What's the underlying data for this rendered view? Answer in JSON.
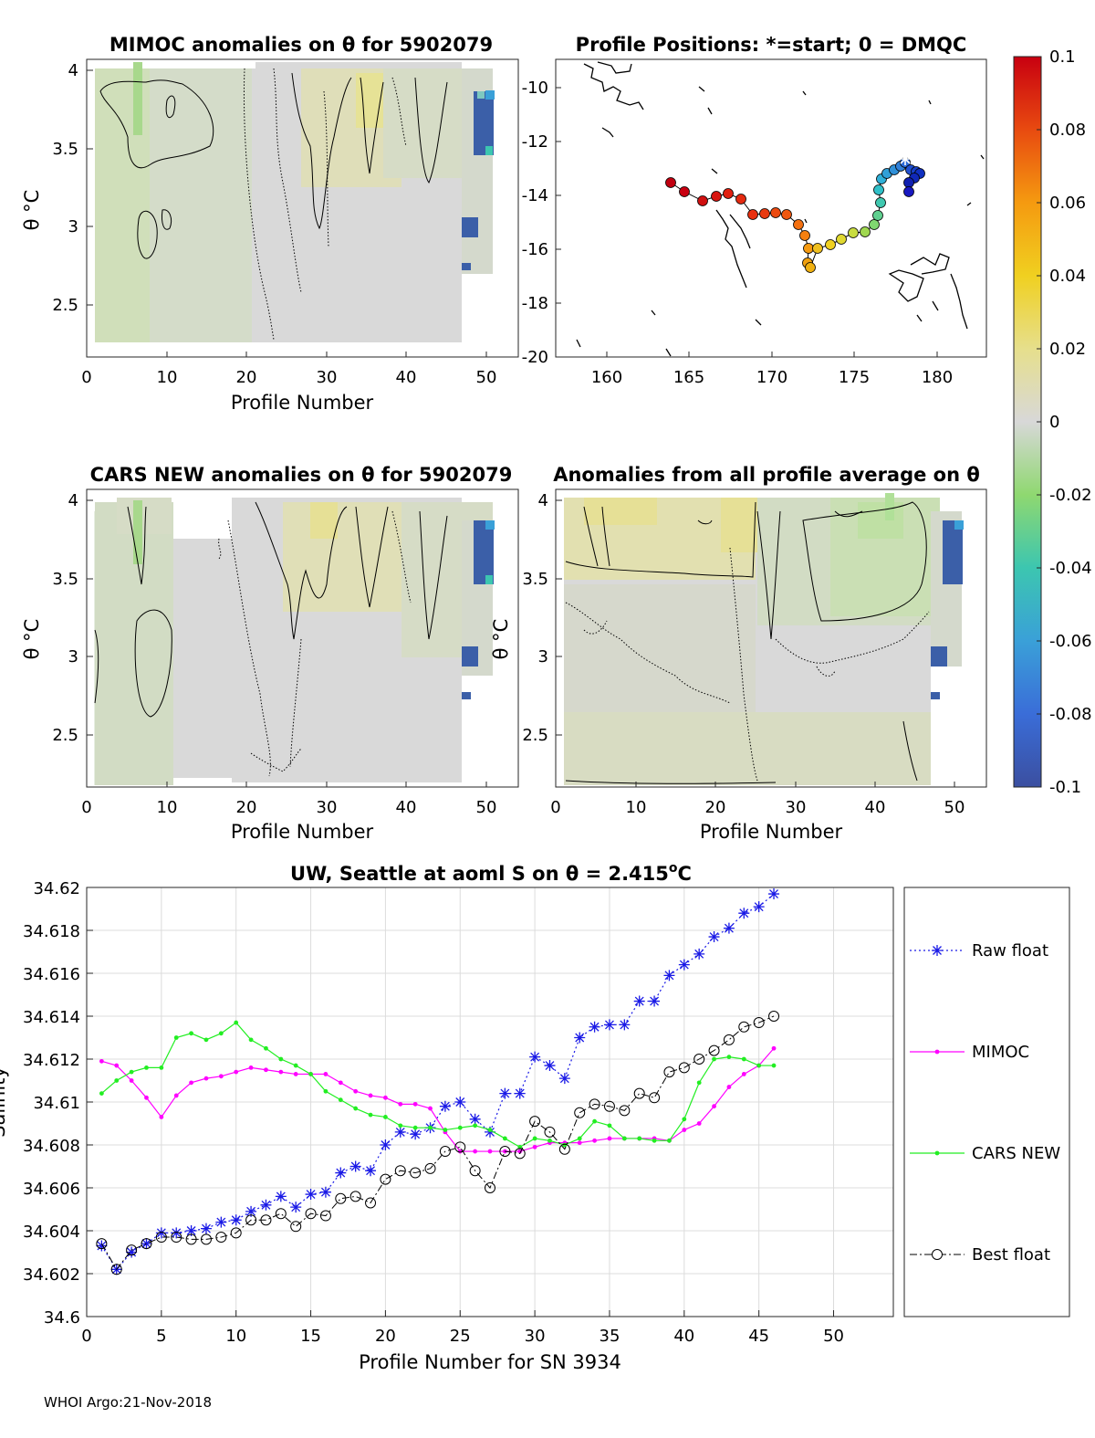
{
  "footer": "WHOI Argo:21-Nov-2018",
  "colorbar": {
    "ticks": [
      "0.1",
      "0.08",
      "0.06",
      "0.04",
      "0.02",
      "0",
      "-0.02",
      "-0.04",
      "-0.06",
      "-0.08",
      "-0.1"
    ],
    "range": [
      -0.1,
      0.1
    ],
    "colors": [
      "#3b4fa0",
      "#3a6dd8",
      "#3aa0d8",
      "#3cc6b0",
      "#8fd870",
      "#d8d8d8",
      "#e6df8c",
      "#f0d020",
      "#f59a10",
      "#e84a10",
      "#c80010"
    ]
  },
  "panels": {
    "mimoc": {
      "title": "MIMOC anomalies on θ  for 5902079",
      "ylabel": "θ °C",
      "xlabel": "Profile Number",
      "xticks": [
        "0",
        "10",
        "20",
        "30",
        "40",
        "50"
      ],
      "yticks": [
        "4",
        "3.5",
        "3",
        "2.5"
      ]
    },
    "positions": {
      "title": "Profile Positions: *=start; 0 = DMQC",
      "xticks": [
        "160",
        "165",
        "170",
        "175",
        "180"
      ],
      "yticks": [
        "-10",
        "-12",
        "-14",
        "-16",
        "-18",
        "-20"
      ]
    },
    "cars": {
      "title": "CARS NEW anomalies on θ for 5902079",
      "ylabel": "θ °C",
      "xlabel": "Profile Number",
      "xticks": [
        "0",
        "10",
        "20",
        "30",
        "40",
        "50"
      ],
      "yticks": [
        "4",
        "3.5",
        "3",
        "2.5"
      ]
    },
    "avg": {
      "title": "Anomalies from all profile average on θ",
      "ylabel": "θ °C",
      "xlabel": "Profile Number",
      "xticks": [
        "0",
        "10",
        "20",
        "30",
        "40",
        "50"
      ],
      "yticks": [
        "4",
        "3.5",
        "3",
        "2.5"
      ]
    }
  },
  "chart_data": {
    "type": "line",
    "title_main": "UW, Seattle at aoml S on θ = 2.415",
    "title_sup": "o",
    "title_end": "C",
    "xlabel": "Profile Number for SN 3934",
    "ylabel": "Salinity",
    "xlim": [
      0,
      54
    ],
    "ylim": [
      34.6,
      34.62
    ],
    "xticks": [
      "0",
      "5",
      "10",
      "15",
      "20",
      "25",
      "30",
      "35",
      "40",
      "45",
      "50"
    ],
    "yticks": [
      "34.62",
      "34.618",
      "34.616",
      "34.614",
      "34.612",
      "34.61",
      "34.608",
      "34.606",
      "34.604",
      "34.602",
      "34.6"
    ],
    "grid": true,
    "legend_position": "right",
    "x": [
      1,
      2,
      3,
      4,
      5,
      6,
      7,
      8,
      9,
      10,
      11,
      12,
      13,
      14,
      15,
      16,
      17,
      18,
      19,
      20,
      21,
      22,
      23,
      24,
      25,
      26,
      27,
      28,
      29,
      30,
      31,
      32,
      33,
      34,
      35,
      36,
      37,
      38,
      39,
      40,
      41,
      42,
      43,
      44,
      45,
      46
    ],
    "series": [
      {
        "name": "Raw float",
        "color": "#1a1ae6",
        "values": [
          34.6033,
          34.6022,
          34.603,
          34.6034,
          34.6039,
          34.6039,
          34.604,
          34.6041,
          34.6044,
          34.6045,
          34.6049,
          34.6052,
          34.6056,
          34.6051,
          34.6057,
          34.6058,
          34.6067,
          34.607,
          34.6068,
          34.608,
          34.6086,
          34.6085,
          34.6088,
          34.6098,
          34.61,
          34.6092,
          34.6086,
          34.6104,
          34.6104,
          34.6121,
          34.6117,
          34.6111,
          34.613,
          34.6135,
          34.6136,
          34.6136,
          34.6147,
          34.6147,
          34.6159,
          34.6164,
          34.6169,
          34.6177,
          34.6181,
          34.6188,
          34.6191,
          34.6197
        ]
      },
      {
        "name": "MIMOC",
        "color": "#ff00ff",
        "values": [
          34.6119,
          34.6117,
          34.611,
          34.6102,
          34.6093,
          34.6103,
          34.6109,
          34.6111,
          34.6112,
          34.6114,
          34.6116,
          34.6115,
          34.6114,
          34.6113,
          34.6113,
          34.6113,
          34.6109,
          34.6105,
          34.6103,
          34.6102,
          34.6099,
          34.6099,
          34.6097,
          34.6086,
          34.6077,
          34.6077,
          34.6077,
          34.6077,
          34.6077,
          34.6079,
          34.6081,
          34.6081,
          34.6081,
          34.6082,
          34.6083,
          34.6083,
          34.6083,
          34.6083,
          34.6082,
          34.6087,
          34.609,
          34.6098,
          34.6107,
          34.6113,
          34.6117,
          34.6125
        ]
      },
      {
        "name": "CARS NEW",
        "color": "#22ee22",
        "values": [
          34.6104,
          34.611,
          34.6114,
          34.6116,
          34.6116,
          34.613,
          34.6132,
          34.6129,
          34.6132,
          34.6137,
          34.6129,
          34.6125,
          34.612,
          34.6117,
          34.6113,
          34.6105,
          34.6101,
          34.6097,
          34.6094,
          34.6093,
          34.6089,
          34.6088,
          34.6088,
          34.6087,
          34.6088,
          34.6089,
          34.6087,
          34.6083,
          34.6079,
          34.6083,
          34.6082,
          34.608,
          34.6083,
          34.6091,
          34.6089,
          34.6083,
          34.6083,
          34.6082,
          34.6082,
          34.6092,
          34.6109,
          34.612,
          34.6121,
          34.612,
          34.6117,
          34.6117
        ]
      },
      {
        "name": "Best float",
        "color": "#000000",
        "values": [
          34.6034,
          34.6022,
          34.6031,
          34.6034,
          34.6037,
          34.6037,
          34.6036,
          34.6036,
          34.6037,
          34.6039,
          34.6045,
          34.6045,
          34.6048,
          34.6042,
          34.6048,
          34.6047,
          34.6055,
          34.6056,
          34.6053,
          34.6064,
          34.6068,
          34.6067,
          34.6069,
          34.6077,
          34.6079,
          34.6068,
          34.606,
          34.6077,
          34.6076,
          34.6091,
          34.6086,
          34.6078,
          34.6095,
          34.6099,
          34.6098,
          34.6096,
          34.6104,
          34.6102,
          34.6114,
          34.6116,
          34.612,
          34.6124,
          34.6129,
          34.6135,
          34.6137,
          34.614
        ]
      }
    ]
  }
}
